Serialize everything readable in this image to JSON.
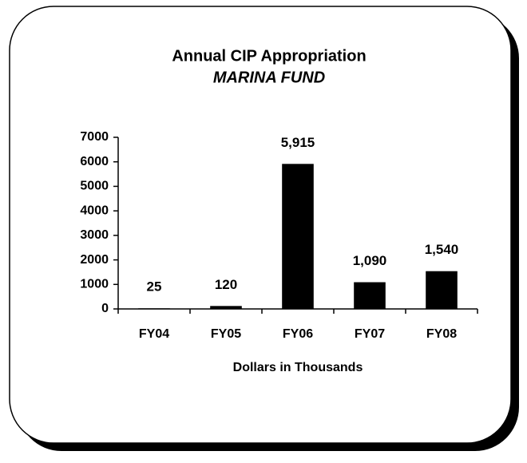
{
  "chart_data": {
    "type": "bar",
    "title": "Annual CIP Appropriation",
    "subtitle": "MARINA FUND",
    "x_label": "Dollars in Thousands",
    "categories": [
      "FY04",
      "FY05",
      "FY06",
      "FY07",
      "FY08"
    ],
    "values": [
      25,
      120,
      5915,
      1090,
      1540
    ],
    "value_labels": [
      "25",
      "120",
      "5,915",
      "1,090",
      "1,540"
    ],
    "color": "#000000",
    "ylim": [
      0,
      7000
    ],
    "yticks": [
      0,
      1000,
      2000,
      3000,
      4000,
      5000,
      6000,
      7000
    ],
    "grid": false
  }
}
